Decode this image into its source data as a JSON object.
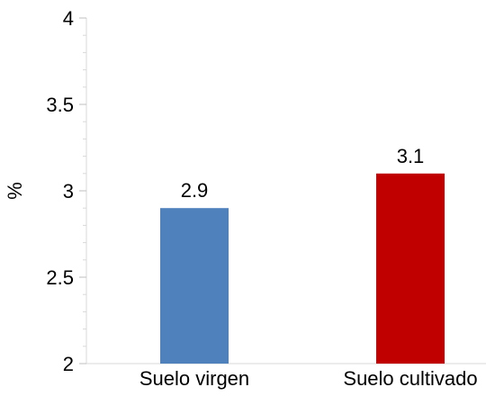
{
  "chart_data": {
    "type": "bar",
    "title": "",
    "xlabel": "",
    "ylabel": "%",
    "ylim": [
      2,
      4
    ],
    "yticks": [
      2,
      2.5,
      3,
      3.5,
      4
    ],
    "ytick_labels": [
      "2",
      "2.5",
      "3",
      "3.5",
      "4"
    ],
    "minor_ticks_per_major": 5,
    "grid": false,
    "legend": "none",
    "categories": [
      "Suelo virgen",
      "Suelo cultivado"
    ],
    "values": [
      2.9,
      3.1
    ],
    "data_labels": [
      "2.9",
      "3.1"
    ],
    "colors": [
      "#4F81BD",
      "#C00000"
    ]
  }
}
